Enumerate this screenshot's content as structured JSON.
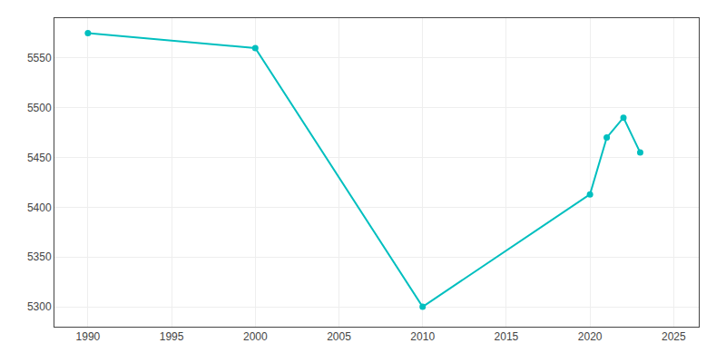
{
  "chart_data": {
    "type": "line",
    "x": [
      1990,
      2000,
      2010,
      2020,
      2021,
      2022,
      2023
    ],
    "values": [
      5575,
      5560,
      5300,
      5413,
      5470,
      5490,
      5455
    ],
    "color": "#00BFBF",
    "marker": "circle",
    "xlim": [
      1988,
      2026.5
    ],
    "ylim": [
      5280,
      5590
    ],
    "xticks": [
      1990,
      1995,
      2000,
      2005,
      2010,
      2015,
      2020,
      2025
    ],
    "yticks": [
      5300,
      5350,
      5400,
      5450,
      5500,
      5550
    ],
    "grid": true
  }
}
